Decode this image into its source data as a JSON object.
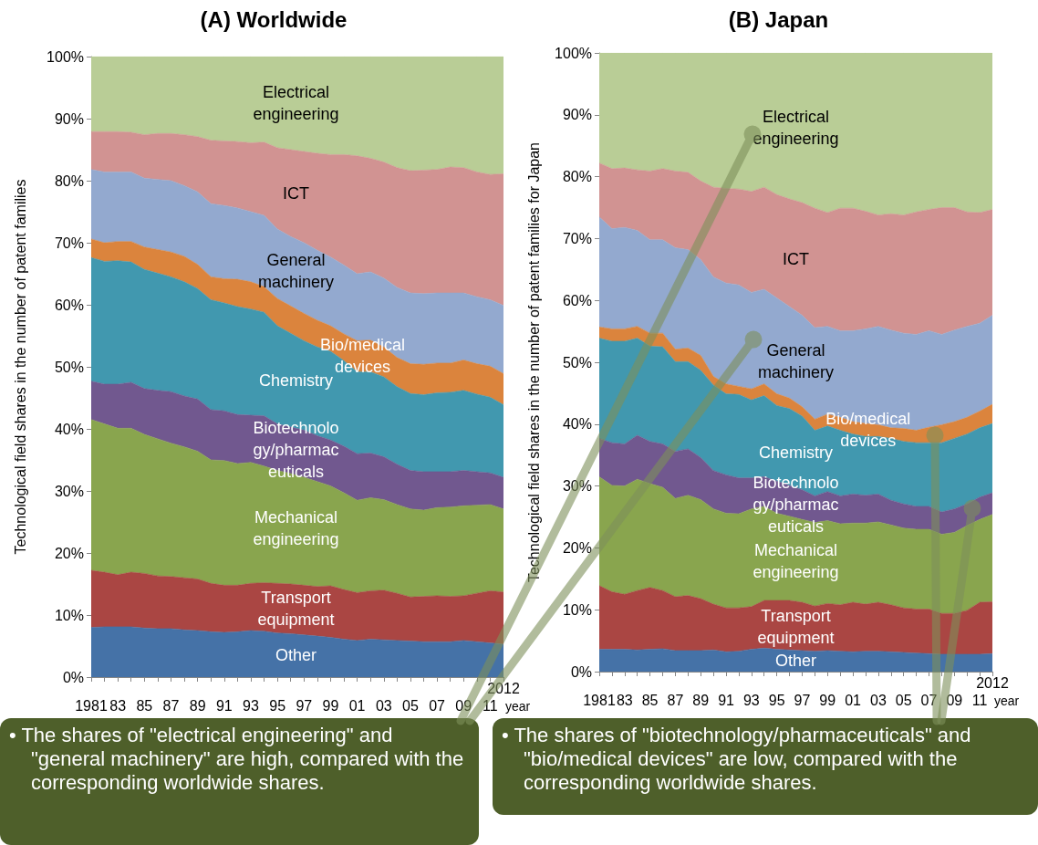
{
  "chart_data": [
    {
      "type": "area",
      "stacked": true,
      "title": "(A) Worldwide",
      "ylabel": "Technological field shares in the number of patent families",
      "xlabel": "year",
      "categories": [
        "1981",
        null,
        "83",
        null,
        "85",
        null,
        "87",
        null,
        "89",
        null,
        "91",
        null,
        "93",
        null,
        "95",
        null,
        "97",
        null,
        "99",
        null,
        "01",
        null,
        "03",
        null,
        "05",
        null,
        "07",
        null,
        "09",
        null,
        "11",
        "2012"
      ],
      "ylim": [
        0,
        100
      ],
      "yticks": [
        {
          "value": 0,
          "label": "0%"
        },
        {
          "value": 10,
          "label": "10%"
        },
        {
          "value": 20,
          "label": "20%"
        },
        {
          "value": 30,
          "label": "30%"
        },
        {
          "value": 40,
          "label": "40%"
        },
        {
          "value": 50,
          "label": "50%"
        },
        {
          "value": 60,
          "label": "60%"
        },
        {
          "value": 70,
          "label": "70%"
        },
        {
          "value": 80,
          "label": "80%"
        },
        {
          "value": 90,
          "label": "90%"
        },
        {
          "value": 100,
          "label": "100%"
        }
      ],
      "series": [
        {
          "name": "Other",
          "color": "#4572a7",
          "values": [
            8.0,
            8.1,
            8.1,
            8.1,
            7.9,
            7.8,
            7.8,
            7.6,
            7.5,
            7.3,
            7.2,
            7.3,
            7.5,
            7.4,
            7.1,
            7.0,
            6.8,
            6.6,
            6.4,
            6.1,
            5.9,
            6.1,
            6.0,
            5.9,
            5.8,
            5.7,
            5.7,
            5.7,
            5.9,
            5.7,
            5.5,
            5.3
          ]
        },
        {
          "name": "Transport\nequipment",
          "color": "#aa4643",
          "values": [
            9.2,
            8.8,
            8.4,
            8.8,
            8.8,
            8.5,
            8.4,
            8.4,
            8.3,
            7.8,
            7.6,
            7.5,
            7.6,
            7.8,
            8.0,
            8.0,
            8.0,
            8.0,
            8.3,
            8.0,
            7.7,
            7.8,
            8.0,
            7.6,
            7.1,
            7.3,
            7.4,
            7.3,
            7.2,
            7.8,
            8.4,
            8.4
          ]
        },
        {
          "name": "Mechanical\nengineering",
          "color": "#89a54e",
          "values": [
            24.3,
            23.9,
            23.6,
            23.2,
            22.4,
            22.1,
            21.5,
            21.1,
            20.6,
            19.9,
            20.1,
            19.6,
            19.5,
            18.8,
            18.2,
            17.8,
            17.4,
            16.9,
            16.1,
            15.6,
            14.9,
            15.0,
            14.6,
            14.3,
            14.2,
            13.9,
            14.2,
            14.4,
            14.5,
            14.2,
            13.9,
            13.4
          ]
        },
        {
          "name": "Biotechnolo\ngy/pharmac\neuticals",
          "color": "#71588f",
          "values": [
            6.2,
            6.4,
            7.1,
            7.4,
            7.4,
            7.8,
            8.3,
            8.2,
            8.4,
            8.1,
            8.0,
            7.9,
            7.6,
            8.1,
            7.5,
            7.5,
            7.6,
            7.4,
            7.4,
            7.5,
            7.5,
            7.2,
            6.9,
            6.5,
            6.2,
            6.2,
            5.8,
            5.7,
            5.7,
            5.4,
            5.1,
            5.1
          ]
        },
        {
          "name": "Chemistry",
          "color": "#4198af",
          "values": [
            19.9,
            19.8,
            19.9,
            19.4,
            19.2,
            18.9,
            18.5,
            18.4,
            17.8,
            17.7,
            17.4,
            17.4,
            17.1,
            16.7,
            15.8,
            15.1,
            14.4,
            14.3,
            14.3,
            13.8,
            13.2,
            13.1,
            12.9,
            12.5,
            12.4,
            12.4,
            12.7,
            12.8,
            12.9,
            12.5,
            12.2,
            11.7
          ]
        },
        {
          "name": "Bio/medical\ndevices",
          "color": "#db843d",
          "values": [
            3.0,
            3.0,
            3.1,
            3.3,
            3.6,
            3.8,
            4.0,
            4.1,
            3.9,
            3.7,
            3.9,
            4.4,
            4.4,
            4.1,
            4.4,
            4.4,
            4.4,
            4.3,
            4.1,
            4.3,
            5.0,
            5.1,
            4.8,
            4.7,
            4.8,
            4.9,
            4.8,
            4.7,
            4.9,
            4.9,
            5.0,
            5.0
          ]
        },
        {
          "name": "General\nmachinery",
          "color": "#93a9cf",
          "values": [
            11.2,
            11.4,
            11.2,
            11.2,
            11.1,
            11.3,
            11.5,
            11.4,
            11.7,
            11.8,
            11.8,
            11.5,
            11.3,
            11.5,
            11.2,
            11.2,
            11.4,
            11.3,
            11.1,
            11.1,
            10.8,
            11.0,
            11.1,
            11.3,
            11.4,
            11.4,
            11.3,
            11.3,
            10.8,
            10.8,
            10.7,
            11.0
          ]
        },
        {
          "name": "ICT",
          "color": "#d19392",
          "values": [
            6.1,
            6.5,
            6.5,
            6.4,
            7.0,
            7.4,
            7.6,
            8.2,
            8.9,
            10.2,
            10.4,
            10.7,
            11.1,
            11.8,
            13.1,
            14.0,
            14.7,
            15.6,
            16.5,
            17.8,
            19.0,
            18.3,
            18.7,
            19.3,
            19.7,
            19.9,
            19.9,
            20.3,
            20.2,
            20.1,
            20.2,
            21.2
          ]
        },
        {
          "name": "Electrical\nengineering",
          "color": "#b9cd96",
          "values": [
            12.1,
            12.1,
            12.1,
            12.2,
            12.6,
            12.4,
            12.4,
            12.6,
            12.9,
            13.5,
            13.6,
            13.7,
            13.9,
            13.8,
            14.7,
            15.0,
            15.3,
            15.6,
            15.8,
            15.8,
            16.0,
            16.4,
            17.0,
            17.9,
            18.4,
            18.3,
            18.2,
            17.8,
            17.9,
            18.6,
            19.0,
            18.9
          ]
        }
      ]
    },
    {
      "type": "area",
      "stacked": true,
      "title": "(B) Japan",
      "ylabel": "Technological field shares in the number of patent families for Japan",
      "xlabel": "year",
      "categories": [
        "1981",
        null,
        "83",
        null,
        "85",
        null,
        "87",
        null,
        "89",
        null,
        "91",
        null,
        "93",
        null,
        "95",
        null,
        "97",
        null,
        "99",
        null,
        "01",
        null,
        "03",
        null,
        "05",
        null,
        "07",
        null,
        "09",
        null,
        "11",
        "2012"
      ],
      "ylim": [
        0,
        100
      ],
      "yticks": [
        {
          "value": 0,
          "label": "0%"
        },
        {
          "value": 10,
          "label": "10%"
        },
        {
          "value": 20,
          "label": "20%"
        },
        {
          "value": 30,
          "label": "30%"
        },
        {
          "value": 40,
          "label": "40%"
        },
        {
          "value": 50,
          "label": "50%"
        },
        {
          "value": 60,
          "label": "60%"
        },
        {
          "value": 70,
          "label": "70%"
        },
        {
          "value": 80,
          "label": "80%"
        },
        {
          "value": 90,
          "label": "90%"
        },
        {
          "value": 100,
          "label": "100%"
        }
      ],
      "annotations": [
        "• The shares of \"electrical engineering\" and \"general machinery\" are high, compared with the corresponding worldwide shares.",
        "• The shares of \"biotechnology/pharmaceuticals\" and \"bio/medical devices\" are low, compared with the corresponding worldwide shares."
      ],
      "series": [
        {
          "name": "Other",
          "color": "#4572a7",
          "values": [
            3.6,
            3.6,
            3.6,
            3.5,
            3.6,
            3.7,
            3.4,
            3.4,
            3.4,
            3.5,
            3.2,
            3.3,
            3.6,
            3.8,
            3.6,
            3.5,
            3.4,
            3.3,
            3.4,
            3.3,
            3.2,
            3.3,
            3.3,
            3.2,
            3.1,
            3.0,
            2.9,
            2.8,
            2.8,
            2.8,
            2.8,
            2.9
          ]
        },
        {
          "name": "Transport\nequipment",
          "color": "#aa4643",
          "values": [
            10.3,
            9.3,
            8.9,
            9.6,
            10.0,
            9.4,
            8.7,
            8.9,
            8.4,
            7.4,
            7.1,
            7.0,
            6.9,
            7.7,
            7.9,
            8.0,
            7.8,
            7.3,
            7.6,
            7.5,
            8.0,
            7.6,
            7.9,
            7.6,
            7.2,
            7.1,
            7.2,
            6.6,
            6.6,
            7.1,
            8.4,
            8.4
          ]
        },
        {
          "name": "Mechanical\nengineering",
          "color": "#89a54e",
          "values": [
            17.6,
            17.2,
            17.5,
            18.0,
            16.8,
            16.7,
            15.9,
            16.2,
            16.0,
            15.4,
            15.3,
            15.2,
            15.8,
            15.2,
            14.1,
            13.6,
            13.4,
            13.5,
            13.4,
            13.1,
            12.8,
            13.1,
            13.0,
            12.9,
            12.9,
            12.9,
            12.9,
            12.8,
            13.1,
            13.7,
            13.4,
            14.1
          ]
        },
        {
          "name": "Biotechnolo\ngy/pharmac\neuticals",
          "color": "#71588f",
          "values": [
            6.2,
            6.9,
            6.8,
            7.1,
            6.8,
            7.0,
            7.6,
            7.5,
            6.8,
            6.2,
            6.2,
            5.8,
            5.0,
            4.8,
            5.2,
            5.0,
            4.8,
            4.3,
            4.7,
            4.5,
            4.7,
            4.5,
            4.5,
            4.0,
            3.9,
            3.7,
            3.7,
            3.6,
            3.8,
            3.5,
            3.6,
            3.5
          ]
        },
        {
          "name": "Chemistry",
          "color": "#4198af",
          "values": [
            16.2,
            16.4,
            16.6,
            15.7,
            15.4,
            15.7,
            14.5,
            14.1,
            14.1,
            13.8,
            13.1,
            13.5,
            12.6,
            13.1,
            12.2,
            12.4,
            11.9,
            10.6,
            10.6,
            10.6,
            9.7,
            9.5,
            9.3,
            10.0,
            10.1,
            10.3,
            10.3,
            11.2,
            11.4,
            11.3,
            11.2,
            11.2
          ]
        },
        {
          "name": "Bio/medical\ndevices",
          "color": "#db843d",
          "values": [
            1.8,
            2.0,
            2.0,
            1.9,
            2.1,
            2.2,
            2.0,
            2.2,
            2.4,
            1.4,
            1.6,
            1.3,
            1.8,
            1.9,
            1.9,
            1.7,
            1.5,
            1.8,
            1.9,
            2.1,
            2.0,
            2.1,
            1.9,
            1.7,
            2.1,
            2.0,
            2.5,
            2.9,
            2.7,
            2.7,
            2.7,
            3.1
          ]
        },
        {
          "name": "General\nmachinery",
          "color": "#93a9cf",
          "values": [
            17.8,
            16.2,
            16.4,
            15.5,
            15.1,
            15.1,
            16.4,
            15.9,
            15.5,
            16.1,
            16.3,
            16.4,
            15.6,
            15.3,
            15.5,
            14.8,
            14.8,
            14.8,
            14.2,
            14.0,
            14.7,
            15.3,
            15.9,
            15.8,
            15.4,
            15.5,
            15.6,
            14.6,
            14.8,
            14.7,
            14.2,
            14.4
          ]
        },
        {
          "name": "ICT",
          "color": "#d19392",
          "values": [
            8.7,
            9.7,
            9.6,
            9.8,
            11.1,
            11.5,
            12.4,
            12.5,
            12.7,
            14.5,
            15.3,
            15.5,
            16.3,
            16.5,
            16.7,
            17.4,
            18.2,
            19.3,
            18.4,
            19.8,
            19.8,
            19.0,
            18.0,
            18.8,
            19.1,
            19.8,
            19.6,
            20.5,
            19.8,
            18.5,
            17.9,
            17.1
          ]
        },
        {
          "name": "Electrical\nengineering",
          "color": "#b9cd96",
          "values": [
            17.8,
            18.7,
            18.6,
            18.9,
            19.1,
            18.7,
            19.1,
            19.3,
            20.7,
            21.7,
            21.9,
            22.0,
            22.4,
            21.7,
            22.9,
            23.6,
            24.2,
            25.1,
            25.8,
            25.1,
            25.1,
            25.6,
            26.2,
            26.0,
            26.2,
            25.7,
            25.3,
            25.0,
            25.0,
            25.7,
            25.8,
            25.3
          ]
        }
      ]
    }
  ]
}
